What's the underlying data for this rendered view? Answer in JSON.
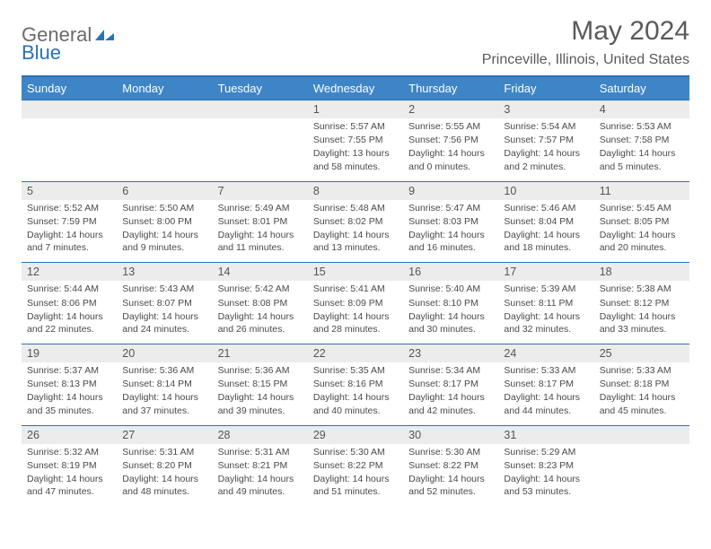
{
  "logo": {
    "text1": "General",
    "text2": "Blue"
  },
  "title": "May 2024",
  "location": "Princeville, Illinois, United States",
  "colors": {
    "header_bg": "#3d85c6",
    "header_border": "#2a71b8",
    "daynum_bg": "#ececec",
    "text_gray": "#5a5a5a"
  },
  "weekdays": [
    "Sunday",
    "Monday",
    "Tuesday",
    "Wednesday",
    "Thursday",
    "Friday",
    "Saturday"
  ],
  "weeks": [
    [
      null,
      null,
      null,
      {
        "n": "1",
        "sr": "Sunrise: 5:57 AM",
        "ss": "Sunset: 7:55 PM",
        "dl": "Daylight: 13 hours and 58 minutes."
      },
      {
        "n": "2",
        "sr": "Sunrise: 5:55 AM",
        "ss": "Sunset: 7:56 PM",
        "dl": "Daylight: 14 hours and 0 minutes."
      },
      {
        "n": "3",
        "sr": "Sunrise: 5:54 AM",
        "ss": "Sunset: 7:57 PM",
        "dl": "Daylight: 14 hours and 2 minutes."
      },
      {
        "n": "4",
        "sr": "Sunrise: 5:53 AM",
        "ss": "Sunset: 7:58 PM",
        "dl": "Daylight: 14 hours and 5 minutes."
      }
    ],
    [
      {
        "n": "5",
        "sr": "Sunrise: 5:52 AM",
        "ss": "Sunset: 7:59 PM",
        "dl": "Daylight: 14 hours and 7 minutes."
      },
      {
        "n": "6",
        "sr": "Sunrise: 5:50 AM",
        "ss": "Sunset: 8:00 PM",
        "dl": "Daylight: 14 hours and 9 minutes."
      },
      {
        "n": "7",
        "sr": "Sunrise: 5:49 AM",
        "ss": "Sunset: 8:01 PM",
        "dl": "Daylight: 14 hours and 11 minutes."
      },
      {
        "n": "8",
        "sr": "Sunrise: 5:48 AM",
        "ss": "Sunset: 8:02 PM",
        "dl": "Daylight: 14 hours and 13 minutes."
      },
      {
        "n": "9",
        "sr": "Sunrise: 5:47 AM",
        "ss": "Sunset: 8:03 PM",
        "dl": "Daylight: 14 hours and 16 minutes."
      },
      {
        "n": "10",
        "sr": "Sunrise: 5:46 AM",
        "ss": "Sunset: 8:04 PM",
        "dl": "Daylight: 14 hours and 18 minutes."
      },
      {
        "n": "11",
        "sr": "Sunrise: 5:45 AM",
        "ss": "Sunset: 8:05 PM",
        "dl": "Daylight: 14 hours and 20 minutes."
      }
    ],
    [
      {
        "n": "12",
        "sr": "Sunrise: 5:44 AM",
        "ss": "Sunset: 8:06 PM",
        "dl": "Daylight: 14 hours and 22 minutes."
      },
      {
        "n": "13",
        "sr": "Sunrise: 5:43 AM",
        "ss": "Sunset: 8:07 PM",
        "dl": "Daylight: 14 hours and 24 minutes."
      },
      {
        "n": "14",
        "sr": "Sunrise: 5:42 AM",
        "ss": "Sunset: 8:08 PM",
        "dl": "Daylight: 14 hours and 26 minutes."
      },
      {
        "n": "15",
        "sr": "Sunrise: 5:41 AM",
        "ss": "Sunset: 8:09 PM",
        "dl": "Daylight: 14 hours and 28 minutes."
      },
      {
        "n": "16",
        "sr": "Sunrise: 5:40 AM",
        "ss": "Sunset: 8:10 PM",
        "dl": "Daylight: 14 hours and 30 minutes."
      },
      {
        "n": "17",
        "sr": "Sunrise: 5:39 AM",
        "ss": "Sunset: 8:11 PM",
        "dl": "Daylight: 14 hours and 32 minutes."
      },
      {
        "n": "18",
        "sr": "Sunrise: 5:38 AM",
        "ss": "Sunset: 8:12 PM",
        "dl": "Daylight: 14 hours and 33 minutes."
      }
    ],
    [
      {
        "n": "19",
        "sr": "Sunrise: 5:37 AM",
        "ss": "Sunset: 8:13 PM",
        "dl": "Daylight: 14 hours and 35 minutes."
      },
      {
        "n": "20",
        "sr": "Sunrise: 5:36 AM",
        "ss": "Sunset: 8:14 PM",
        "dl": "Daylight: 14 hours and 37 minutes."
      },
      {
        "n": "21",
        "sr": "Sunrise: 5:36 AM",
        "ss": "Sunset: 8:15 PM",
        "dl": "Daylight: 14 hours and 39 minutes."
      },
      {
        "n": "22",
        "sr": "Sunrise: 5:35 AM",
        "ss": "Sunset: 8:16 PM",
        "dl": "Daylight: 14 hours and 40 minutes."
      },
      {
        "n": "23",
        "sr": "Sunrise: 5:34 AM",
        "ss": "Sunset: 8:17 PM",
        "dl": "Daylight: 14 hours and 42 minutes."
      },
      {
        "n": "24",
        "sr": "Sunrise: 5:33 AM",
        "ss": "Sunset: 8:17 PM",
        "dl": "Daylight: 14 hours and 44 minutes."
      },
      {
        "n": "25",
        "sr": "Sunrise: 5:33 AM",
        "ss": "Sunset: 8:18 PM",
        "dl": "Daylight: 14 hours and 45 minutes."
      }
    ],
    [
      {
        "n": "26",
        "sr": "Sunrise: 5:32 AM",
        "ss": "Sunset: 8:19 PM",
        "dl": "Daylight: 14 hours and 47 minutes."
      },
      {
        "n": "27",
        "sr": "Sunrise: 5:31 AM",
        "ss": "Sunset: 8:20 PM",
        "dl": "Daylight: 14 hours and 48 minutes."
      },
      {
        "n": "28",
        "sr": "Sunrise: 5:31 AM",
        "ss": "Sunset: 8:21 PM",
        "dl": "Daylight: 14 hours and 49 minutes."
      },
      {
        "n": "29",
        "sr": "Sunrise: 5:30 AM",
        "ss": "Sunset: 8:22 PM",
        "dl": "Daylight: 14 hours and 51 minutes."
      },
      {
        "n": "30",
        "sr": "Sunrise: 5:30 AM",
        "ss": "Sunset: 8:22 PM",
        "dl": "Daylight: 14 hours and 52 minutes."
      },
      {
        "n": "31",
        "sr": "Sunrise: 5:29 AM",
        "ss": "Sunset: 8:23 PM",
        "dl": "Daylight: 14 hours and 53 minutes."
      },
      null
    ]
  ]
}
